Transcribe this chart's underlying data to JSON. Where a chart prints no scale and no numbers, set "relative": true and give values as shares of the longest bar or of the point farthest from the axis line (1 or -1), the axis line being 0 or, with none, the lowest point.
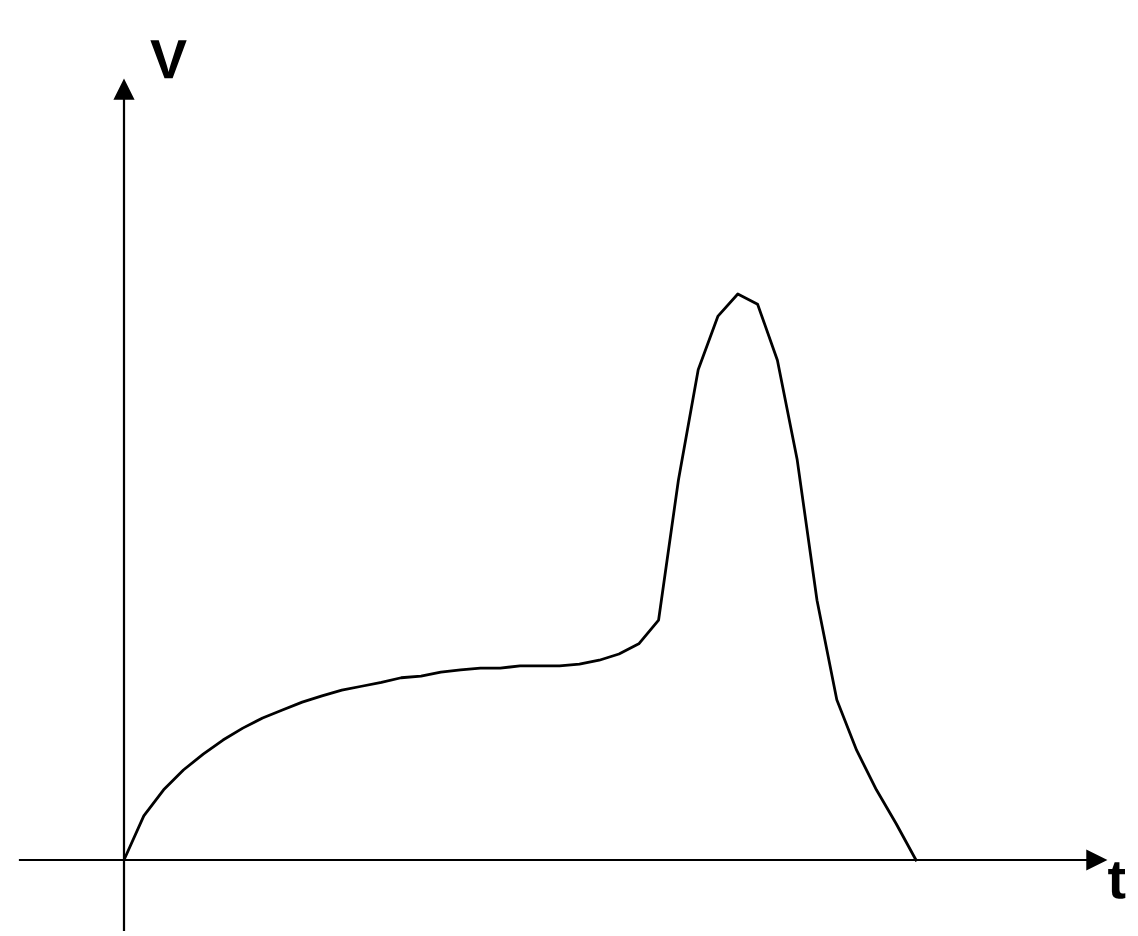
{
  "chart_data": {
    "type": "line",
    "relative": true,
    "xlabel": "t",
    "ylabel": "V",
    "legend": false,
    "marker": "none",
    "line_style": "solid",
    "categories": [
      null,
      null,
      null,
      null,
      null,
      null,
      null,
      null,
      null,
      null,
      null,
      null,
      null,
      null,
      null,
      null,
      null,
      null,
      null,
      null,
      null,
      null,
      null,
      null,
      null,
      null,
      null,
      null,
      null,
      null,
      null,
      null,
      null,
      null,
      null,
      null,
      null,
      null,
      null,
      null,
      null
    ],
    "series": [
      {
        "color": "#000000",
        "values": [
          0,
          0.078,
          0.124,
          0.159,
          0.187,
          0.212,
          0.233,
          0.251,
          0.265,
          0.279,
          0.29,
          0.3,
          0.307,
          0.314,
          0.322,
          0.325,
          0.332,
          0.336,
          0.339,
          0.339,
          0.343,
          0.343,
          0.343,
          0.346,
          0.353,
          0.364,
          0.382,
          0.424,
          0.671,
          0.866,
          0.961,
          1,
          0.982,
          0.883,
          0.707,
          0.459,
          0.283,
          0.194,
          0.124,
          0.064,
          0
        ]
      }
    ]
  }
}
